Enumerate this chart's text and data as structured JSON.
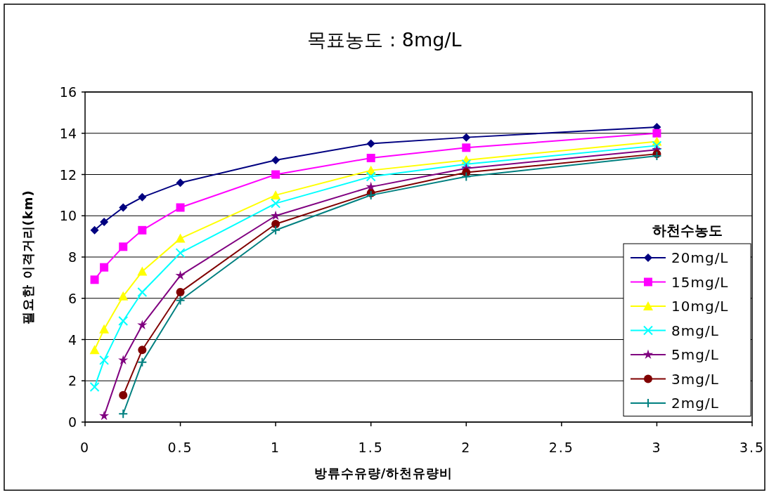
{
  "chart_data": {
    "type": "line",
    "title": "목표농도 : 8mg/L",
    "xlabel": "방류수유량/하천유량비",
    "ylabel": "필요한 이격거리(km)",
    "legend_title": "하천수농도",
    "xlim": [
      0,
      3.5
    ],
    "xticks": [
      0,
      0.5,
      1,
      1.5,
      2,
      2.5,
      3,
      3.5
    ],
    "ylim": [
      0,
      16
    ],
    "yticks": [
      0,
      2,
      4,
      6,
      8,
      10,
      12,
      14,
      16
    ],
    "grid": "y",
    "legend": "right",
    "series": [
      {
        "name": "20mg/L",
        "color": "#000080",
        "marker": "diamond",
        "x": [
          0.05,
          0.1,
          0.2,
          0.3,
          0.5,
          1,
          1.5,
          2,
          3
        ],
        "values": [
          9.3,
          9.7,
          10.4,
          10.9,
          11.6,
          12.7,
          13.5,
          13.8,
          14.3
        ]
      },
      {
        "name": "15mg/L",
        "color": "#ff00ff",
        "marker": "square",
        "x": [
          0.05,
          0.1,
          0.2,
          0.3,
          0.5,
          1,
          1.5,
          2,
          3
        ],
        "values": [
          6.9,
          7.5,
          8.5,
          9.3,
          10.4,
          12.0,
          12.8,
          13.3,
          14.0
        ]
      },
      {
        "name": "10mg/L",
        "color": "#ffff00",
        "marker": "triangle",
        "x": [
          0.05,
          0.1,
          0.2,
          0.3,
          0.5,
          1,
          1.5,
          2,
          3
        ],
        "values": [
          3.5,
          4.5,
          6.1,
          7.3,
          8.9,
          11.0,
          12.2,
          12.7,
          13.6
        ]
      },
      {
        "name": "8mg/L",
        "color": "#00ffff",
        "marker": "cross",
        "x": [
          0.05,
          0.1,
          0.2,
          0.3,
          0.5,
          1,
          1.5,
          2,
          3
        ],
        "values": [
          1.7,
          3.0,
          4.9,
          6.3,
          8.2,
          10.6,
          11.9,
          12.5,
          13.4
        ]
      },
      {
        "name": "5mg/L",
        "color": "#800080",
        "marker": "star",
        "x": [
          0.1,
          0.2,
          0.3,
          0.5,
          1,
          1.5,
          2,
          3
        ],
        "values": [
          0.3,
          3.0,
          4.7,
          7.1,
          10.0,
          11.4,
          12.3,
          13.2
        ]
      },
      {
        "name": "3mg/L",
        "color": "#800000",
        "marker": "circle",
        "x": [
          0.2,
          0.3,
          0.5,
          1,
          1.5,
          2,
          3
        ],
        "values": [
          1.3,
          3.5,
          6.3,
          9.6,
          11.1,
          12.1,
          13.0
        ]
      },
      {
        "name": "2mg/L",
        "color": "#008080",
        "marker": "plus",
        "x": [
          0.2,
          0.3,
          0.5,
          1,
          1.5,
          2,
          3
        ],
        "values": [
          0.4,
          2.9,
          5.9,
          9.3,
          11.0,
          11.9,
          12.9
        ]
      }
    ]
  }
}
